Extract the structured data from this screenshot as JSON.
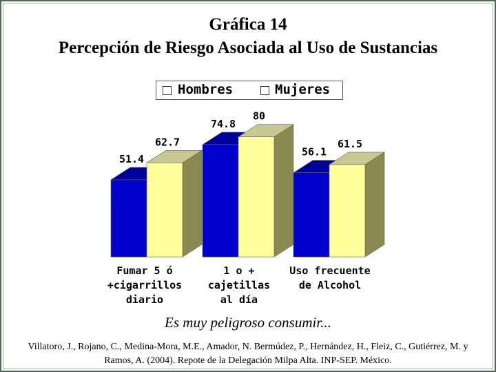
{
  "title": "Gráfica 14",
  "subtitle": "Percepción de Riesgo Asociada al Uso de Sustancias",
  "caption": "Es muy peligroso consumir...",
  "source": "Villatoro, J., Rojano, C., Medina-Mora, M.E., Amador, N. Bermúdez, P., Hernández, H., Fleiz, C., Gutiérrez, M. y Ramos, A. (2004). Repote de la Delegación Milpa Alta. INP-SEP. México.",
  "colors": {
    "hombres": "#0000cc",
    "mujeres": "#ffff99"
  },
  "chart_data": {
    "type": "bar",
    "categories": [
      "Fumar 5 ó\n+cigarrillos\ndiario",
      "1 o + cajetillas\nal día",
      "Uso frecuente\nde Alcohol"
    ],
    "series": [
      {
        "name": "Hombres",
        "values": [
          51.4,
          74.8,
          56.1
        ]
      },
      {
        "name": "Mujeres",
        "values": [
          62.7,
          80,
          61.5
        ]
      }
    ],
    "value_labels": [
      [
        "51.4",
        "74.8",
        "56.1"
      ],
      [
        "62.7",
        "80",
        "61.5"
      ]
    ],
    "ylim": [
      0,
      80
    ],
    "legend": "top",
    "grid": false,
    "style": "3d"
  }
}
